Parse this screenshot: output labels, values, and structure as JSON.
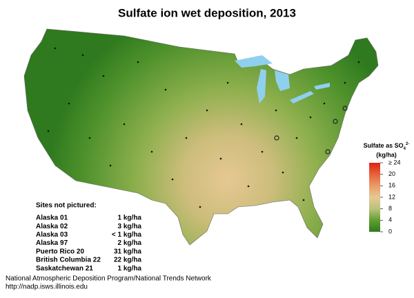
{
  "title": "Sulfate ion wet deposition, 2013",
  "legend": {
    "title": "Sulfate as SO",
    "subscript": "4",
    "superscript": "2-",
    "unit": "(kg/ha)",
    "ticks": [
      {
        "value": 24,
        "label": "≥ 24"
      },
      20,
      16,
      12,
      8,
      4,
      0
    ]
  },
  "sites_not_pictured": {
    "heading": "Sites not pictured:",
    "rows": [
      [
        "Alaska 01",
        "1 kg/ha"
      ],
      [
        "Alaska 02",
        "3 kg/ha"
      ],
      [
        "Alaska 03",
        "< 1 kg/ha"
      ],
      [
        "Alaska 97",
        "2 kg/ha"
      ],
      [
        "Puerto Rico 20",
        "31 kg/ha"
      ],
      [
        "British Columbia 22",
        "22 kg/ha"
      ],
      [
        "Saskatchewan 21",
        "1 kg/ha"
      ]
    ]
  },
  "footer": [
    "National Atmospheric Deposition Program/National Trends Network",
    "http://nadp.isws.illinois.edu"
  ]
}
